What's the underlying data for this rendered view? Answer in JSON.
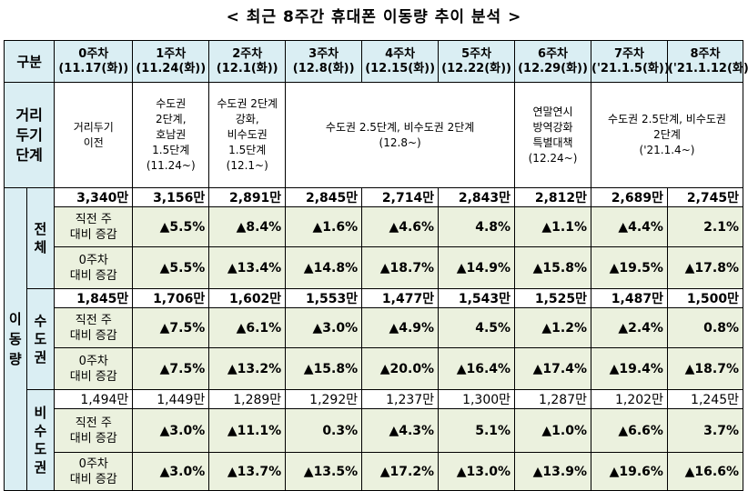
{
  "title": "< 최근 8주간 휴대폰 이동량 추이 분석 >",
  "header": {
    "corner": "구분",
    "weeks": [
      {
        "name": "0주차",
        "date": "(11.17(화))"
      },
      {
        "name": "1주차",
        "date": "(11.24(화))"
      },
      {
        "name": "2주차",
        "date": "(12.1(화))"
      },
      {
        "name": "3주차",
        "date": "(12.8(화))"
      },
      {
        "name": "4주차",
        "date": "(12.15(화))"
      },
      {
        "name": "5주차",
        "date": "(12.22(화))"
      },
      {
        "name": "6주차",
        "date": "(12.29(화))"
      },
      {
        "name": "7주차",
        "date": "('21.1.5(화))"
      },
      {
        "name": "8주차",
        "date": "('21.1.12(화))"
      }
    ]
  },
  "stage": {
    "label_lines": [
      "거리",
      "두기",
      "단계"
    ],
    "w0": [
      "거리두기",
      "이전"
    ],
    "w1": [
      "수도권",
      "2단계,",
      "호남권",
      "1.5단계",
      "(11.24~)"
    ],
    "w2": [
      "수도권 2단계",
      "강화,",
      "비수도권",
      "1.5단계",
      "(12.1~)"
    ],
    "w3_5": [
      "수도권 2.5단계, 비수도권 2단계",
      "(12.8~)"
    ],
    "w6": [
      "연말연시",
      "방역강화",
      "특별대책",
      "(12.24~)"
    ],
    "w7_8": [
      "수도권 2.5단계, 비수도권",
      "2단계",
      "('21.1.4~)"
    ]
  },
  "labels": {
    "movement": [
      "이",
      "동",
      "량"
    ],
    "total": [
      "전",
      "체"
    ],
    "capital": [
      "수",
      "도",
      "권"
    ],
    "noncapital": [
      "비",
      "수",
      "도",
      "권"
    ],
    "prev_week": [
      "직전 주",
      "대비 증감"
    ],
    "week0": [
      "0주차",
      "대비 증감"
    ]
  },
  "rows": {
    "total": {
      "counts": [
        "3,340만",
        "3,156만",
        "2,891만",
        "2,845만",
        "2,714만",
        "2,843만",
        "2,812만",
        "2,689만",
        "2,745만"
      ],
      "prev": [
        "▲5.5%",
        "▲8.4%",
        "▲1.6%",
        "▲4.6%",
        "4.8%",
        "▲1.1%",
        "▲4.4%",
        "2.1%"
      ],
      "base": [
        "▲5.5%",
        "▲13.4%",
        "▲14.8%",
        "▲18.7%",
        "▲14.9%",
        "▲15.8%",
        "▲19.5%",
        "▲17.8%"
      ]
    },
    "capital": {
      "counts": [
        "1,845만",
        "1,706만",
        "1,602만",
        "1,553만",
        "1,477만",
        "1,543만",
        "1,525만",
        "1,487만",
        "1,500만"
      ],
      "prev": [
        "▲7.5%",
        "▲6.1%",
        "▲3.0%",
        "▲4.9%",
        "4.5%",
        "▲1.2%",
        "▲2.4%",
        "0.8%"
      ],
      "base": [
        "▲7.5%",
        "▲13.2%",
        "▲15.8%",
        "▲20.0%",
        "▲16.4%",
        "▲17.4%",
        "▲19.4%",
        "▲18.7%"
      ]
    },
    "noncapital": {
      "counts": [
        "1,494만",
        "1,449만",
        "1,289만",
        "1,292만",
        "1,237만",
        "1,300만",
        "1,287만",
        "1,202만",
        "1,245만"
      ],
      "prev": [
        "▲3.0%",
        "▲11.1%",
        "0.3%",
        "▲4.3%",
        "5.1%",
        "▲1.0%",
        "▲6.6%",
        "3.7%"
      ],
      "base": [
        "▲3.0%",
        "▲13.7%",
        "▲13.5%",
        "▲17.2%",
        "▲13.0%",
        "▲13.9%",
        "▲19.6%",
        "▲16.6%"
      ]
    }
  }
}
